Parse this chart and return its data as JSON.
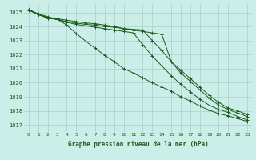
{
  "title": "Graphe pression niveau de la mer (hPa)",
  "bg_color": "#cceee8",
  "grid_color": "#aacccc",
  "line_color": "#1a5c1a",
  "x_ticks": [
    0,
    1,
    2,
    3,
    4,
    5,
    6,
    7,
    8,
    9,
    10,
    11,
    12,
    13,
    14,
    15,
    16,
    17,
    18,
    19,
    20,
    21,
    22,
    23
  ],
  "y_ticks": [
    1017,
    1018,
    1019,
    1020,
    1021,
    1022,
    1023,
    1024,
    1025
  ],
  "ylim": [
    1016.5,
    1025.6
  ],
  "xlim": [
    -0.5,
    23.5
  ],
  "series": [
    [
      1025.2,
      1024.85,
      1024.65,
      1024.55,
      1024.45,
      1024.35,
      1024.25,
      1024.2,
      1024.1,
      1024.0,
      1023.85,
      1023.75,
      1023.65,
      1023.55,
      1023.45,
      1021.5,
      1020.7,
      1020.1,
      1019.5,
      1018.9,
      1018.4,
      1018.1,
      1017.85,
      1017.6
    ],
    [
      1025.2,
      1024.9,
      1024.7,
      1024.5,
      1024.35,
      1024.25,
      1024.15,
      1024.1,
      1024.0,
      1023.95,
      1023.85,
      1023.8,
      1023.75,
      1023.0,
      1022.3,
      1021.5,
      1020.9,
      1020.3,
      1019.7,
      1019.1,
      1018.6,
      1018.2,
      1018.0,
      1017.75
    ],
    [
      1025.2,
      1024.85,
      1024.6,
      1024.5,
      1024.1,
      1023.5,
      1022.95,
      1022.45,
      1021.95,
      1021.5,
      1021.0,
      1020.7,
      1020.35,
      1020.0,
      1019.7,
      1019.4,
      1019.0,
      1018.7,
      1018.35,
      1018.05,
      1017.8,
      1017.65,
      1017.45,
      1017.25
    ],
    [
      1025.15,
      1024.85,
      1024.6,
      1024.5,
      1024.3,
      1024.15,
      1024.05,
      1023.95,
      1023.85,
      1023.75,
      1023.65,
      1023.55,
      1022.7,
      1021.9,
      1021.2,
      1020.5,
      1019.9,
      1019.35,
      1018.85,
      1018.4,
      1018.1,
      1017.9,
      1017.6,
      1017.35
    ]
  ]
}
